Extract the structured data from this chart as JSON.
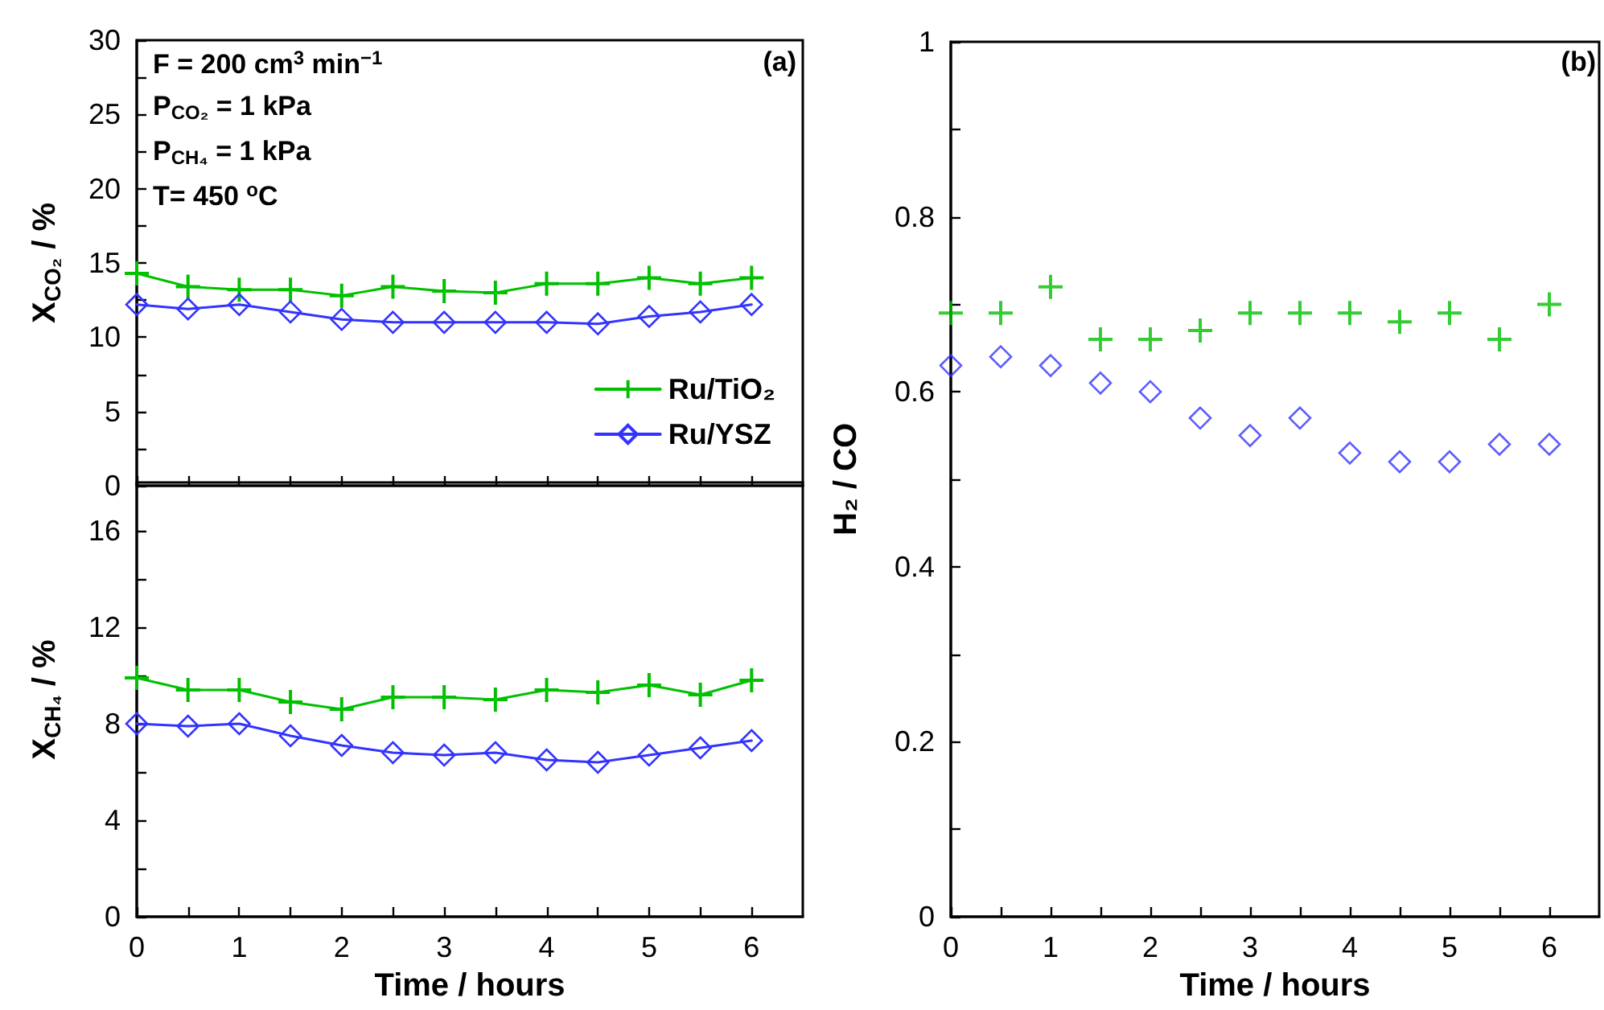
{
  "chart_data": [
    {
      "type": "line",
      "ylabel": "X$_{CO₂}$ / %",
      "x": [
        0,
        0.5,
        1,
        1.5,
        2,
        2.5,
        3,
        3.5,
        4,
        4.5,
        5,
        5.5,
        6
      ],
      "series": [
        {
          "name": "Ru/TiO₂",
          "color": "#00c000",
          "marker": "cross",
          "values": [
            14.3,
            13.4,
            13.2,
            13.2,
            12.8,
            13.4,
            13.1,
            13.0,
            13.6,
            13.6,
            14.0,
            13.6,
            14.0
          ]
        },
        {
          "name": "Ru/YSZ",
          "color": "#3333ff",
          "marker": "diamond",
          "values": [
            12.2,
            11.9,
            12.2,
            11.7,
            11.2,
            11.0,
            11.0,
            11.0,
            11.0,
            10.9,
            11.4,
            11.7,
            12.2
          ]
        }
      ],
      "xlim": [
        0,
        6.5
      ],
      "xticks": [
        0,
        {
          "value": 0.5,
          "label": null
        },
        1,
        {
          "value": 1.5,
          "label": null
        },
        2,
        {
          "value": 2.5,
          "label": null
        },
        3,
        {
          "value": 3.5,
          "label": null
        },
        4,
        {
          "value": 4.5,
          "label": null
        },
        5,
        {
          "value": 5.5,
          "label": null
        },
        6
      ],
      "ylim": [
        0,
        30
      ],
      "yticks": [
        0,
        {
          "value": 2.5,
          "label": null
        },
        5,
        {
          "value": 7.5,
          "label": null
        },
        10,
        {
          "value": 12.5,
          "label": null
        },
        15,
        {
          "value": 17.5,
          "label": null
        },
        20,
        {
          "value": 22.5,
          "label": null
        },
        25,
        {
          "value": 27.5,
          "label": null
        },
        30
      ],
      "tick_labels": "y",
      "legend": "bottom right",
      "grid": false,
      "annotations": [
        "F = 200 cm$^{3}$ min$^{−1}$",
        "P$_{CO₂}$ = 1 kPa",
        "P$_{CH₄}$ = 1 kPa",
        "T= 450 $^{o}$C",
        "(a)"
      ]
    },
    {
      "type": "line",
      "xlabel": "Time / hours",
      "ylabel": "X$_{CH₄}$ / %",
      "x": [
        0,
        0.5,
        1,
        1.5,
        2,
        2.5,
        3,
        3.5,
        4,
        4.5,
        5,
        5.5,
        6
      ],
      "series": [
        {
          "color": "#00c000",
          "marker": "cross",
          "values": [
            9.9,
            9.4,
            9.4,
            8.9,
            8.6,
            9.1,
            9.1,
            9.0,
            9.4,
            9.3,
            9.6,
            9.2,
            9.8
          ]
        },
        {
          "color": "#3333ff",
          "marker": "diamond",
          "values": [
            8.0,
            7.9,
            8.0,
            7.5,
            7.1,
            6.8,
            6.7,
            6.8,
            6.5,
            6.4,
            6.7,
            7.0,
            7.3
          ]
        }
      ],
      "xlim": [
        0,
        6.5
      ],
      "xticks": [
        0,
        {
          "value": 0.5,
          "label": null
        },
        1,
        {
          "value": 1.5,
          "label": null
        },
        2,
        {
          "value": 2.5,
          "label": null
        },
        3,
        {
          "value": 3.5,
          "label": null
        },
        4,
        {
          "value": 4.5,
          "label": null
        },
        5,
        {
          "value": 5.5,
          "label": null
        },
        6
      ],
      "ylim": [
        0,
        18
      ],
      "yticks": [
        0,
        {
          "value": 2,
          "label": null
        },
        4,
        {
          "value": 6,
          "label": null
        },
        8,
        {
          "value": 10,
          "label": null
        },
        12,
        {
          "value": 14,
          "label": null
        },
        16
      ],
      "grid": false
    },
    {
      "type": "scatter",
      "xlabel": "Time / hours",
      "ylabel": "H₂ / CO",
      "x": [
        0,
        0.5,
        1,
        1.5,
        2,
        2.5,
        3,
        3.5,
        4,
        4.5,
        5,
        5.5,
        6
      ],
      "series": [
        {
          "color": "#00c000",
          "marker": "cross",
          "values": [
            0.69,
            0.69,
            0.72,
            0.66,
            0.66,
            0.67,
            0.69,
            0.69,
            0.69,
            0.68,
            0.69,
            0.66,
            0.7
          ]
        },
        {
          "color": "#3333ff",
          "marker": "diamond",
          "values": [
            0.63,
            0.64,
            0.63,
            0.61,
            0.6,
            0.57,
            0.55,
            0.57,
            0.53,
            0.52,
            0.52,
            0.54,
            0.54
          ]
        }
      ],
      "xlim": [
        0,
        6.5
      ],
      "xticks": [
        0,
        {
          "value": 0.5,
          "label": null
        },
        1,
        {
          "value": 1.5,
          "label": null
        },
        2,
        {
          "value": 2.5,
          "label": null
        },
        3,
        {
          "value": 3.5,
          "label": null
        },
        4,
        {
          "value": 4.5,
          "label": null
        },
        5,
        {
          "value": 5.5,
          "label": null
        },
        6
      ],
      "ylim": [
        0,
        1
      ],
      "yticks": [
        0,
        {
          "value": 0.1,
          "label": null
        },
        0.2,
        {
          "value": 0.3,
          "label": null
        },
        0.4,
        {
          "value": 0.5,
          "label": null
        },
        0.6,
        {
          "value": 0.7,
          "label": null
        },
        0.8,
        {
          "value": 0.9,
          "label": null
        },
        1
      ],
      "grid": false,
      "annotations": [
        "(b)"
      ]
    }
  ]
}
